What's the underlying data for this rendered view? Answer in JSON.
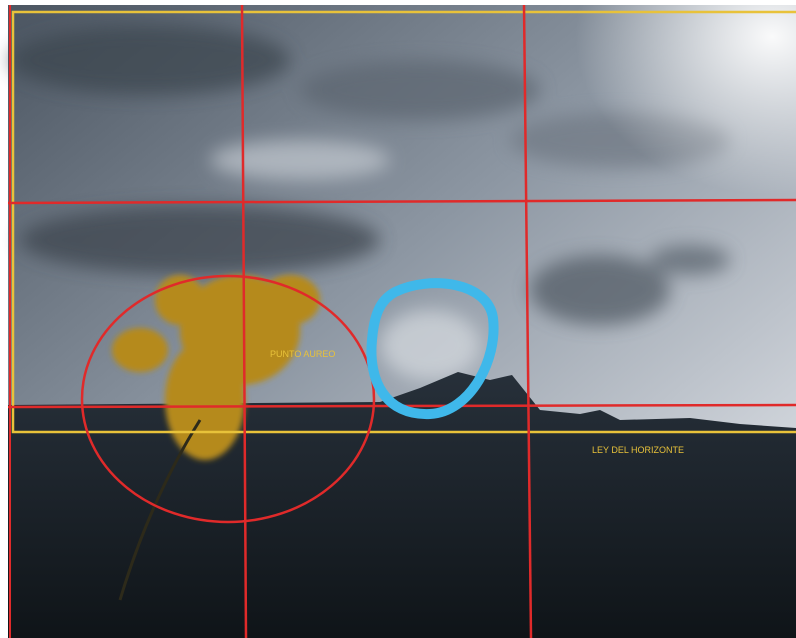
{
  "labels": {
    "golden_point": "PUNTO AUREO",
    "horizon_law": "LEY DEL HORIZONTE"
  }
}
